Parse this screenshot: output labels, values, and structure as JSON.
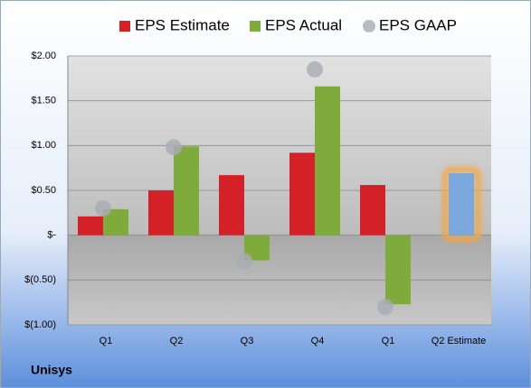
{
  "chart_data": {
    "type": "bar",
    "footer": "Unisys",
    "categories": [
      "Q1",
      "Q2",
      "Q3",
      "Q4",
      "Q1",
      "Q2 Estimate"
    ],
    "series": [
      {
        "name": "EPS Estimate",
        "color": "#d42027",
        "values": [
          0.21,
          0.5,
          0.67,
          0.92,
          0.56,
          0.69
        ],
        "colors": [
          "#d42027",
          "#d42027",
          "#d42027",
          "#d42027",
          "#d42027",
          "#7ba7dc"
        ],
        "glow": [
          null,
          null,
          null,
          null,
          null,
          "#f5a742"
        ]
      },
      {
        "name": "EPS Actual",
        "color": "#7faa3c",
        "values": [
          0.29,
          0.99,
          -0.28,
          1.66,
          -0.77,
          null
        ]
      },
      {
        "name": "EPS GAAP",
        "color": "#a8adb4",
        "marker": "circle",
        "values": [
          0.3,
          0.98,
          -0.29,
          1.85,
          -0.8,
          null
        ]
      }
    ],
    "ylim": [
      -1,
      2
    ],
    "yticks": [
      {
        "value": -1,
        "label": "$(1.00)"
      },
      {
        "value": -0.5,
        "label": "$(0.50)"
      },
      {
        "value": 0,
        "label": "$-"
      },
      {
        "value": 0.5,
        "label": "$0.50"
      },
      {
        "value": 1,
        "label": "$1.00"
      },
      {
        "value": 1.5,
        "label": "$1.50"
      },
      {
        "value": 2,
        "label": "$2.00"
      }
    ],
    "grid": true
  }
}
